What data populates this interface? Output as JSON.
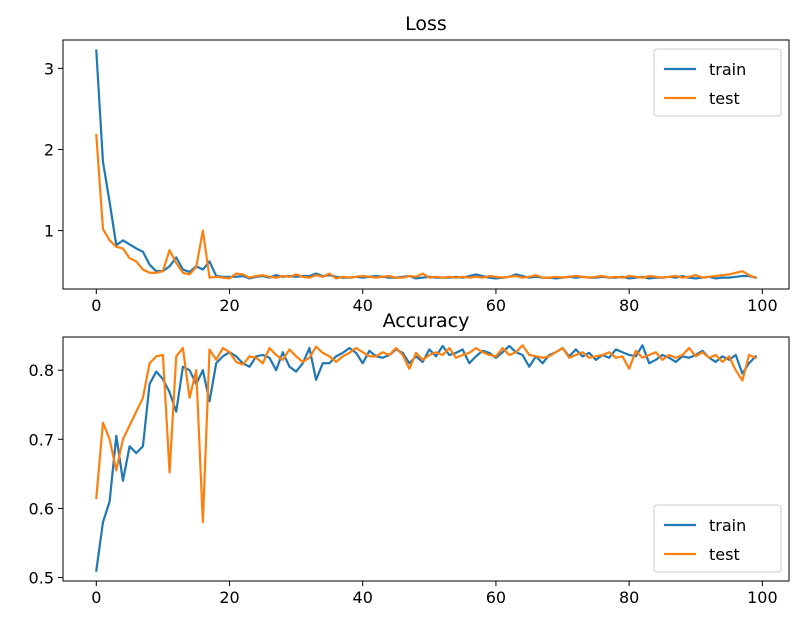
{
  "chart_data": [
    {
      "type": "line",
      "title": "Loss",
      "xlabel": "",
      "ylabel": "",
      "xlim": [
        -5,
        104
      ],
      "ylim": [
        0.28,
        3.35
      ],
      "xticks": [
        0,
        20,
        40,
        60,
        80,
        100
      ],
      "yticks": [
        1,
        2,
        3
      ],
      "grid": false,
      "legend": "top-right",
      "series": [
        {
          "name": "train",
          "color": "#1f77b4",
          "values": [
            3.22,
            1.85,
            1.35,
            0.82,
            0.88,
            0.83,
            0.78,
            0.74,
            0.58,
            0.5,
            0.5,
            0.56,
            0.67,
            0.52,
            0.49,
            0.56,
            0.52,
            0.62,
            0.44,
            0.43,
            0.43,
            0.43,
            0.44,
            0.41,
            0.43,
            0.44,
            0.42,
            0.45,
            0.43,
            0.44,
            0.43,
            0.44,
            0.44,
            0.47,
            0.44,
            0.45,
            0.43,
            0.42,
            0.42,
            0.43,
            0.42,
            0.43,
            0.44,
            0.43,
            0.42,
            0.42,
            0.43,
            0.44,
            0.41,
            0.42,
            0.43,
            0.42,
            0.42,
            0.42,
            0.43,
            0.42,
            0.44,
            0.46,
            0.44,
            0.42,
            0.41,
            0.42,
            0.43,
            0.46,
            0.44,
            0.42,
            0.43,
            0.42,
            0.42,
            0.41,
            0.42,
            0.43,
            0.42,
            0.43,
            0.42,
            0.42,
            0.43,
            0.42,
            0.42,
            0.43,
            0.41,
            0.42,
            0.43,
            0.41,
            0.42,
            0.42,
            0.43,
            0.42,
            0.44,
            0.42,
            0.41,
            0.42,
            0.43,
            0.41,
            0.42,
            0.42,
            0.43,
            0.44,
            0.44,
            0.42
          ]
        },
        {
          "name": "test",
          "color": "#ff7f0e",
          "values": [
            2.18,
            1.02,
            0.88,
            0.8,
            0.78,
            0.66,
            0.62,
            0.52,
            0.48,
            0.48,
            0.5,
            0.76,
            0.6,
            0.48,
            0.46,
            0.55,
            1.0,
            0.42,
            0.43,
            0.42,
            0.41,
            0.47,
            0.46,
            0.42,
            0.44,
            0.45,
            0.43,
            0.42,
            0.44,
            0.43,
            0.46,
            0.43,
            0.42,
            0.45,
            0.43,
            0.47,
            0.41,
            0.43,
            0.42,
            0.43,
            0.44,
            0.43,
            0.42,
            0.43,
            0.44,
            0.42,
            0.42,
            0.44,
            0.43,
            0.47,
            0.42,
            0.43,
            0.42,
            0.43,
            0.42,
            0.43,
            0.42,
            0.43,
            0.42,
            0.44,
            0.43,
            0.42,
            0.43,
            0.44,
            0.42,
            0.43,
            0.45,
            0.42,
            0.42,
            0.43,
            0.42,
            0.43,
            0.44,
            0.43,
            0.42,
            0.43,
            0.44,
            0.42,
            0.43,
            0.42,
            0.44,
            0.43,
            0.42,
            0.44,
            0.43,
            0.42,
            0.43,
            0.44,
            0.42,
            0.43,
            0.45,
            0.42,
            0.43,
            0.44,
            0.45,
            0.46,
            0.48,
            0.5,
            0.45,
            0.42
          ]
        }
      ]
    },
    {
      "type": "line",
      "title": "Accuracy",
      "xlabel": "",
      "ylabel": "",
      "xlim": [
        -5,
        104
      ],
      "ylim": [
        0.495,
        0.848
      ],
      "xticks": [
        0,
        20,
        40,
        60,
        80,
        100
      ],
      "yticks": [
        0.5,
        0.6,
        0.7,
        0.8
      ],
      "grid": false,
      "legend": "bottom-right",
      "series": [
        {
          "name": "train",
          "color": "#1f77b4",
          "values": [
            0.51,
            0.58,
            0.61,
            0.705,
            0.64,
            0.69,
            0.68,
            0.69,
            0.78,
            0.798,
            0.787,
            0.768,
            0.74,
            0.805,
            0.8,
            0.78,
            0.8,
            0.755,
            0.81,
            0.82,
            0.826,
            0.82,
            0.81,
            0.805,
            0.82,
            0.822,
            0.818,
            0.8,
            0.826,
            0.805,
            0.798,
            0.81,
            0.832,
            0.786,
            0.81,
            0.81,
            0.82,
            0.825,
            0.832,
            0.825,
            0.81,
            0.828,
            0.82,
            0.818,
            0.822,
            0.83,
            0.825,
            0.81,
            0.82,
            0.812,
            0.83,
            0.82,
            0.835,
            0.822,
            0.825,
            0.83,
            0.81,
            0.82,
            0.828,
            0.825,
            0.818,
            0.826,
            0.835,
            0.826,
            0.822,
            0.805,
            0.82,
            0.81,
            0.822,
            0.826,
            0.832,
            0.82,
            0.83,
            0.82,
            0.825,
            0.815,
            0.822,
            0.818,
            0.83,
            0.826,
            0.822,
            0.82,
            0.836,
            0.81,
            0.815,
            0.822,
            0.818,
            0.812,
            0.82,
            0.818,
            0.822,
            0.828,
            0.818,
            0.812,
            0.82,
            0.815,
            0.822,
            0.795,
            0.81,
            0.82
          ]
        },
        {
          "name": "test",
          "color": "#ff7f0e",
          "values": [
            0.615,
            0.724,
            0.7,
            0.655,
            0.7,
            0.72,
            0.74,
            0.76,
            0.81,
            0.82,
            0.822,
            0.652,
            0.82,
            0.832,
            0.76,
            0.8,
            0.58,
            0.83,
            0.815,
            0.832,
            0.826,
            0.812,
            0.808,
            0.82,
            0.818,
            0.81,
            0.832,
            0.822,
            0.815,
            0.83,
            0.82,
            0.812,
            0.818,
            0.834,
            0.825,
            0.82,
            0.812,
            0.82,
            0.825,
            0.832,
            0.826,
            0.82,
            0.82,
            0.826,
            0.822,
            0.832,
            0.822,
            0.802,
            0.825,
            0.815,
            0.822,
            0.826,
            0.822,
            0.832,
            0.818,
            0.822,
            0.825,
            0.832,
            0.826,
            0.822,
            0.82,
            0.832,
            0.822,
            0.826,
            0.836,
            0.822,
            0.82,
            0.818,
            0.82,
            0.826,
            0.832,
            0.818,
            0.822,
            0.826,
            0.818,
            0.82,
            0.822,
            0.826,
            0.818,
            0.82,
            0.802,
            0.828,
            0.818,
            0.822,
            0.826,
            0.815,
            0.822,
            0.818,
            0.822,
            0.832,
            0.82,
            0.826,
            0.818,
            0.822,
            0.812,
            0.82,
            0.8,
            0.785,
            0.822,
            0.818
          ]
        }
      ]
    }
  ]
}
